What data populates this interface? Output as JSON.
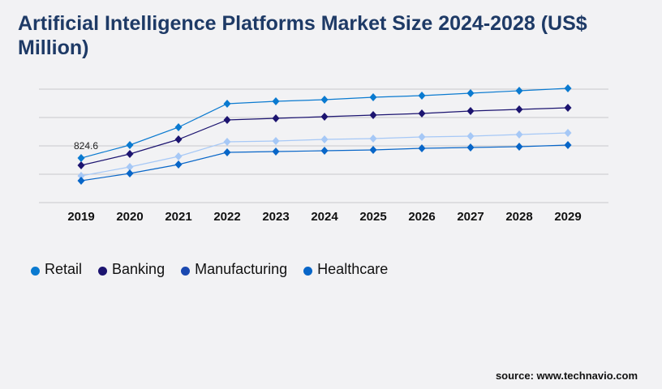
{
  "chart_data": {
    "type": "line",
    "title": "Artificial Intelligence Platforms Market Size 2024-2028 (US$ Million)",
    "xlabel": "",
    "ylabel": "",
    "ylim": [
      0,
      2100
    ],
    "grid": true,
    "legend_placement": "bottom-left",
    "x": [
      "2019",
      "2020",
      "2021",
      "2022",
      "2023",
      "2024",
      "2025",
      "2026",
      "2027",
      "2028",
      "2029"
    ],
    "series": [
      {
        "name": "Retail",
        "color": "#0a7ad0",
        "legend_color": "#0a7ad0",
        "values": [
          824.6,
          1065,
          1395,
          1830,
          1875,
          1905,
          1950,
          1980,
          2025,
          2070,
          2115
        ]
      },
      {
        "name": "Banking",
        "color": "#1c1470",
        "legend_color": "#1c1470",
        "values": [
          690,
          900,
          1170,
          1530,
          1560,
          1590,
          1620,
          1650,
          1695,
          1725,
          1755
        ]
      },
      {
        "name": "Manufacturing",
        "color": "#a6c8f6",
        "legend_color": "#1a48b0",
        "values": [
          495,
          660,
          855,
          1125,
          1140,
          1170,
          1185,
          1215,
          1230,
          1260,
          1290
        ]
      },
      {
        "name": "Healthcare",
        "color": "#0866c8",
        "legend_color": "#0866c8",
        "values": [
          405,
          540,
          705,
          930,
          945,
          960,
          975,
          1005,
          1020,
          1035,
          1065
        ]
      }
    ],
    "annotations": [
      {
        "series": "Retail",
        "x": "2019",
        "text": "824.6"
      }
    ]
  },
  "source": "source: www.technavio.com"
}
